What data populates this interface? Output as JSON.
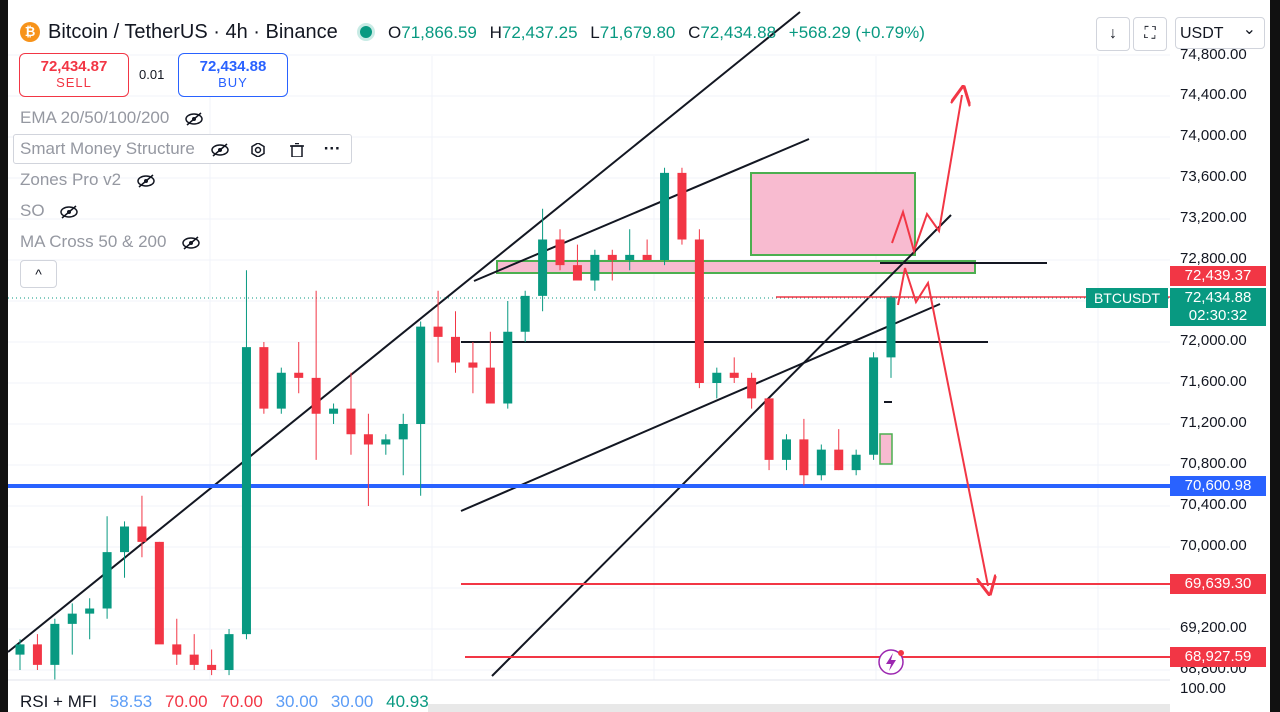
{
  "header": {
    "symbol_icon": "₿",
    "symbol_title": "Bitcoin / TetherUS · 4h · Binance",
    "ohlc": [
      {
        "k": "O",
        "v": "71,866.59"
      },
      {
        "k": "H",
        "v": "72,437.25"
      },
      {
        "k": "L",
        "v": "71,679.80"
      },
      {
        "k": "C",
        "v": "72,434.88"
      }
    ],
    "change": "+568.29 (+0.79%)",
    "download_icon": "↓",
    "fullscreen_icon": "⛶",
    "currency": "USDT",
    "currency_caret": "⌄"
  },
  "trade": {
    "sell_price": "72,434.87",
    "sell_label": "SELL",
    "qty": "0.01",
    "buy_price": "72,434.88",
    "buy_label": "BUY"
  },
  "indicators": [
    "EMA 20/50/100/200",
    "Smart Money Structure",
    "Zones Pro v2",
    "SO",
    "MA Cross 50 & 200"
  ],
  "indicator_toolbar": {
    "more_icon": "···"
  },
  "collapse_label": "^",
  "price_axis": {
    "ticks": [
      "74,800.00",
      "74,400.00",
      "74,000.00",
      "73,600.00",
      "73,200.00",
      "72,800.00",
      "72,000.00",
      "71,600.00",
      "71,200.00",
      "70,800.00",
      "70,400.00",
      "70,000.00",
      "69,200.00",
      "68,800.00"
    ],
    "rsi_tick": "100.00"
  },
  "price_labels": {
    "alert_high": "72,439.37",
    "symbol_tag": "BTCUSDT",
    "current_price": "72,434.88",
    "countdown": "02:30:32",
    "support_blue": "70,600.98",
    "level_1": "69,639.30",
    "level_2": "68,927.59"
  },
  "rsi": {
    "name": "RSI + MFI",
    "values": [
      "58.53",
      "70.00",
      "70.00",
      "30.00",
      "30.00",
      "40.93"
    ],
    "colors": [
      "#5b9cf6",
      "#f23645",
      "#f23645",
      "#5b9cf6",
      "#5b9cf6",
      "#089981"
    ]
  },
  "colors": {
    "up": "#089981",
    "down": "#f23645",
    "support": "#2962ff",
    "zone_fill": "#f8bbd0",
    "zone_border": "#4caf50"
  },
  "chart_data": {
    "type": "candlestick",
    "timeframe": "4h",
    "ylim": [
      68700,
      74900
    ],
    "candles": [
      {
        "o": 68950,
        "h": 69100,
        "l": 68800,
        "c": 69050
      },
      {
        "o": 69050,
        "h": 69150,
        "l": 68800,
        "c": 68850
      },
      {
        "o": 68850,
        "h": 69300,
        "l": 68700,
        "c": 69250
      },
      {
        "o": 69250,
        "h": 69450,
        "l": 68950,
        "c": 69350
      },
      {
        "o": 69350,
        "h": 69500,
        "l": 69100,
        "c": 69400
      },
      {
        "o": 69400,
        "h": 70300,
        "l": 69300,
        "c": 69950
      },
      {
        "o": 69950,
        "h": 70250,
        "l": 69700,
        "c": 70200
      },
      {
        "o": 70200,
        "h": 70500,
        "l": 69900,
        "c": 70050
      },
      {
        "o": 70050,
        "h": 70050,
        "l": 69100,
        "c": 69050
      },
      {
        "o": 69050,
        "h": 69300,
        "l": 68850,
        "c": 68950
      },
      {
        "o": 68950,
        "h": 69150,
        "l": 68800,
        "c": 68850
      },
      {
        "o": 68850,
        "h": 69000,
        "l": 68750,
        "c": 68800
      },
      {
        "o": 68800,
        "h": 69200,
        "l": 68750,
        "c": 69150
      },
      {
        "o": 69150,
        "h": 72700,
        "l": 69100,
        "c": 71950
      },
      {
        "o": 71950,
        "h": 72000,
        "l": 71300,
        "c": 71350
      },
      {
        "o": 71350,
        "h": 71750,
        "l": 71300,
        "c": 71700
      },
      {
        "o": 71700,
        "h": 72000,
        "l": 71500,
        "c": 71650
      },
      {
        "o": 71650,
        "h": 72500,
        "l": 70850,
        "c": 71300
      },
      {
        "o": 71300,
        "h": 71400,
        "l": 71200,
        "c": 71350
      },
      {
        "o": 71350,
        "h": 71700,
        "l": 70900,
        "c": 71100
      },
      {
        "o": 71100,
        "h": 71300,
        "l": 70400,
        "c": 71000
      },
      {
        "o": 71000,
        "h": 71100,
        "l": 70900,
        "c": 71050
      },
      {
        "o": 71050,
        "h": 71300,
        "l": 70700,
        "c": 71200
      },
      {
        "o": 71200,
        "h": 72200,
        "l": 70500,
        "c": 72150
      },
      {
        "o": 72150,
        "h": 72500,
        "l": 71800,
        "c": 72050
      },
      {
        "o": 72050,
        "h": 72300,
        "l": 71700,
        "c": 71800
      },
      {
        "o": 71800,
        "h": 72000,
        "l": 71500,
        "c": 71750
      },
      {
        "o": 71750,
        "h": 72100,
        "l": 71450,
        "c": 71400
      },
      {
        "o": 71400,
        "h": 72400,
        "l": 71350,
        "c": 72100
      },
      {
        "o": 72100,
        "h": 72500,
        "l": 72000,
        "c": 72450
      },
      {
        "o": 72450,
        "h": 73300,
        "l": 72300,
        "c": 73000
      },
      {
        "o": 73000,
        "h": 73100,
        "l": 72700,
        "c": 72750
      },
      {
        "o": 72750,
        "h": 72950,
        "l": 72600,
        "c": 72600
      },
      {
        "o": 72600,
        "h": 72900,
        "l": 72500,
        "c": 72850
      },
      {
        "o": 72850,
        "h": 72900,
        "l": 72600,
        "c": 72800
      },
      {
        "o": 72800,
        "h": 73100,
        "l": 72700,
        "c": 72850
      },
      {
        "o": 72850,
        "h": 73000,
        "l": 72850,
        "c": 72800
      },
      {
        "o": 72800,
        "h": 73700,
        "l": 72750,
        "c": 73650
      },
      {
        "o": 73650,
        "h": 73700,
        "l": 72950,
        "c": 73000
      },
      {
        "o": 73000,
        "h": 73100,
        "l": 71550,
        "c": 71600
      },
      {
        "o": 71600,
        "h": 71750,
        "l": 71450,
        "c": 71700
      },
      {
        "o": 71700,
        "h": 71850,
        "l": 71600,
        "c": 71650
      },
      {
        "o": 71650,
        "h": 71700,
        "l": 71350,
        "c": 71450
      },
      {
        "o": 71450,
        "h": 71450,
        "l": 70750,
        "c": 70850
      },
      {
        "o": 70850,
        "h": 71100,
        "l": 70750,
        "c": 71050
      },
      {
        "o": 71050,
        "h": 71250,
        "l": 70600,
        "c": 70700
      },
      {
        "o": 70700,
        "h": 71000,
        "l": 70650,
        "c": 70950
      },
      {
        "o": 70950,
        "h": 71150,
        "l": 70750,
        "c": 70750
      },
      {
        "o": 70750,
        "h": 70950,
        "l": 70700,
        "c": 70900
      },
      {
        "o": 70900,
        "h": 71900,
        "l": 70850,
        "c": 71850
      },
      {
        "o": 71850,
        "h": 72450,
        "l": 71650,
        "c": 72434.88
      }
    ],
    "horizontal_levels": [
      72439.37,
      70600.98,
      69639.3,
      68927.59
    ]
  }
}
